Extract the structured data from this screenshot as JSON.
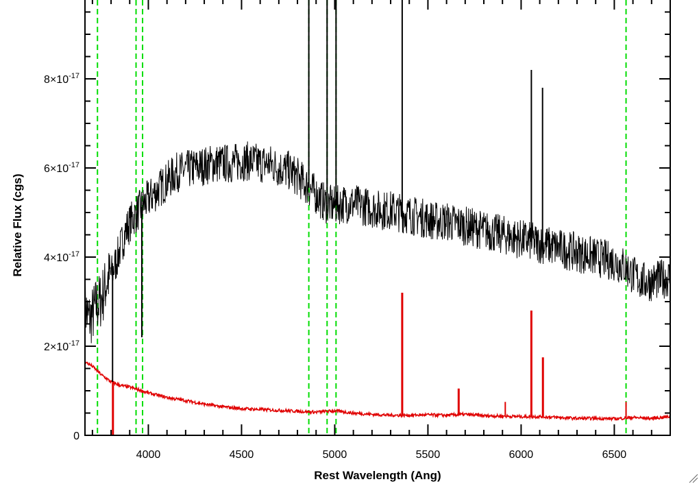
{
  "chart_data": {
    "type": "line",
    "xlabel": "Rest Wavelength (Ang)",
    "ylabel": "Relative Flux (cgs)",
    "xlim": [
      3660,
      6800
    ],
    "ylim": [
      0,
      9.8e-17
    ],
    "x_ticks": [
      {
        "value": 4000,
        "label": "4000"
      },
      {
        "value": 4500,
        "label": "4500"
      },
      {
        "value": 5000,
        "label": "5000"
      },
      {
        "value": 5500,
        "label": "5500"
      },
      {
        "value": 6000,
        "label": "6000"
      },
      {
        "value": 6500,
        "label": "6500"
      }
    ],
    "y_ticks": [
      {
        "value": 0,
        "mantissa": "0",
        "exponent": ""
      },
      {
        "value": 2e-17,
        "mantissa": "2×10",
        "exponent": "-17"
      },
      {
        "value": 4e-17,
        "mantissa": "4×10",
        "exponent": "-17"
      },
      {
        "value": 6e-17,
        "mantissa": "6×10",
        "exponent": "-17"
      },
      {
        "value": 8e-17,
        "mantissa": "8×10",
        "exponent": "-17"
      }
    ],
    "grid": false,
    "series": [
      {
        "color": "#000000",
        "x": [
          3660,
          3680,
          3700,
          3720,
          3740,
          3760,
          3780,
          3800,
          3820,
          3850,
          3880,
          3920,
          3960,
          4000,
          4050,
          4100,
          4150,
          4200,
          4250,
          4300,
          4350,
          4400,
          4450,
          4500,
          4550,
          4600,
          4650,
          4700,
          4750,
          4800,
          4850,
          4900,
          4950,
          5000,
          5050,
          5100,
          5150,
          5200,
          5250,
          5300,
          5350,
          5400,
          5450,
          5500,
          5550,
          5600,
          5650,
          5700,
          5750,
          5800,
          5850,
          5900,
          5950,
          6000,
          6050,
          6100,
          6150,
          6200,
          6250,
          6300,
          6350,
          6400,
          6450,
          6500,
          6550,
          6600,
          6650,
          6700,
          6750,
          6800
        ],
        "y": [
          2.9e-17,
          2.6e-17,
          2.7e-17,
          2.9e-17,
          3e-17,
          3.2e-17,
          3.5e-17,
          3.6e-17,
          3.8e-17,
          4.2e-17,
          4.6e-17,
          4.9e-17,
          5.1e-17,
          5.3e-17,
          5.5e-17,
          5.7e-17,
          5.9e-17,
          5.95e-17,
          6e-17,
          6.05e-17,
          6.1e-17,
          6.1e-17,
          6.1e-17,
          6.15e-17,
          6.15e-17,
          6.1e-17,
          6.1e-17,
          6e-17,
          5.95e-17,
          5.8e-17,
          5.6e-17,
          5.4e-17,
          5.2e-17,
          5.15e-17,
          5.2e-17,
          5.2e-17,
          5.15e-17,
          5.1e-17,
          5.05e-17,
          5.05e-17,
          5e-17,
          4.95e-17,
          4.9e-17,
          4.85e-17,
          4.8e-17,
          4.8e-17,
          4.75e-17,
          4.7e-17,
          4.65e-17,
          4.6e-17,
          4.55e-17,
          4.5e-17,
          4.45e-17,
          4.4e-17,
          4.35e-17,
          4.3e-17,
          4.25e-17,
          4.2e-17,
          4.15e-17,
          4.1e-17,
          4.05e-17,
          4e-17,
          3.95e-17,
          3.9e-17,
          3.8e-17,
          3.6e-17,
          3.45e-17,
          3.45e-17,
          3.5e-17,
          3.55e-17
        ]
      },
      {
        "color": "#e00000",
        "x": [
          3660,
          3700,
          3750,
          3800,
          3850,
          3900,
          3950,
          4000,
          4100,
          4200,
          4300,
          4400,
          4500,
          4600,
          4700,
          4800,
          4900,
          5000,
          5100,
          5200,
          5300,
          5400,
          5500,
          5600,
          5700,
          5800,
          5900,
          6000,
          6100,
          6200,
          6300,
          6400,
          6500,
          6600,
          6700,
          6800
        ],
        "y": [
          1.65e-17,
          1.55e-17,
          1.35e-17,
          1.2e-17,
          1.12e-17,
          1.08e-17,
          1.02e-17,
          9.5e-18,
          8.5e-18,
          7.8e-18,
          7e-18,
          6.4e-18,
          6e-18,
          5.8e-18,
          5.6e-18,
          5.4e-18,
          5.2e-18,
          5.5e-18,
          5e-18,
          4.7e-18,
          4.5e-18,
          4.5e-18,
          4.6e-18,
          4.5e-18,
          4.7e-18,
          4.4e-18,
          4.3e-18,
          4.2e-18,
          4.2e-18,
          4e-18,
          3.8e-18,
          3.8e-18,
          3.7e-18,
          4e-18,
          3.8e-18,
          4.2e-18
        ]
      }
    ],
    "spikes": [
      {
        "series": 0,
        "x": 3808,
        "y": 1.2e-17,
        "width": 2
      },
      {
        "series": 0,
        "x": 3965,
        "y": 2.2e-17,
        "width": 2
      },
      {
        "series": 0,
        "x": 4861,
        "y": 9.8e-17,
        "width": 2
      },
      {
        "series": 0,
        "x": 4959,
        "y": 9.8e-17,
        "width": 2
      },
      {
        "series": 0,
        "x": 5007,
        "y": 9.8e-17,
        "width": 2
      },
      {
        "series": 0,
        "x": 5362,
        "y": 9.8e-17,
        "width": 2
      },
      {
        "series": 0,
        "x": 6055,
        "y": 8.2e-17,
        "width": 2
      },
      {
        "series": 0,
        "x": 6115,
        "y": 7.8e-17,
        "width": 2
      },
      {
        "series": 1,
        "x": 3810,
        "y": 0.0,
        "width": 3
      },
      {
        "series": 1,
        "x": 5362,
        "y": 3.2e-17,
        "width": 3
      },
      {
        "series": 1,
        "x": 5665,
        "y": 1.05e-17,
        "width": 3
      },
      {
        "series": 1,
        "x": 5915,
        "y": 7.5e-18,
        "width": 2
      },
      {
        "series": 1,
        "x": 6055,
        "y": 2.8e-17,
        "width": 3
      },
      {
        "series": 1,
        "x": 6117,
        "y": 1.75e-17,
        "width": 3
      },
      {
        "series": 1,
        "x": 6563,
        "y": 7.5e-18,
        "width": 2
      }
    ],
    "reference_lines": {
      "color": "#00dd00",
      "style": "dashed",
      "x": [
        3727,
        3934,
        3969,
        4861,
        4959,
        5007,
        6563
      ]
    }
  }
}
